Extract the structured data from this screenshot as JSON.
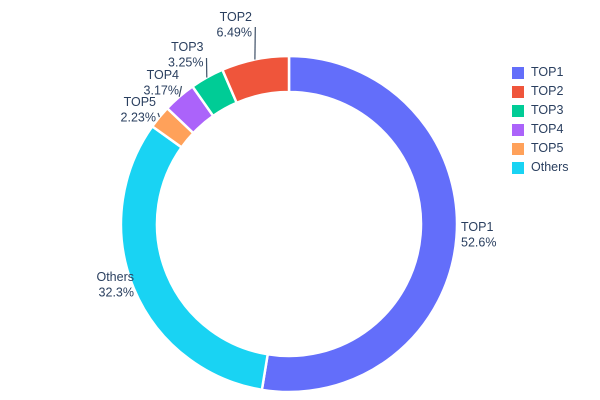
{
  "chart_data": {
    "type": "pie",
    "title": "",
    "hole": 0.785,
    "direction": "clockwise",
    "start_angle_deg": 0,
    "background": "#ffffff",
    "label_text_color": "#2a3f5f",
    "slices": [
      {
        "label": "TOP1",
        "value": 52.6,
        "pct_text": "52.6%",
        "color": "#636efa"
      },
      {
        "label": "TOP2",
        "value": 6.49,
        "pct_text": "6.49%",
        "color": "#ef553b"
      },
      {
        "label": "TOP3",
        "value": 3.25,
        "pct_text": "3.25%",
        "color": "#00cc96"
      },
      {
        "label": "TOP4",
        "value": 3.17,
        "pct_text": "3.17%",
        "color": "#ab63fa"
      },
      {
        "label": "TOP5",
        "value": 2.23,
        "pct_text": "2.23%",
        "color": "#ffa15a"
      },
      {
        "label": "Others",
        "value": 32.3,
        "pct_text": "32.3%",
        "color": "#19d3f3"
      }
    ],
    "draw_order": [
      "TOP1",
      "Others",
      "TOP5",
      "TOP4",
      "TOP3",
      "TOP2"
    ],
    "legend": {
      "position": "right",
      "entries": [
        "TOP1",
        "TOP2",
        "TOP3",
        "TOP4",
        "TOP5",
        "Others"
      ]
    }
  }
}
